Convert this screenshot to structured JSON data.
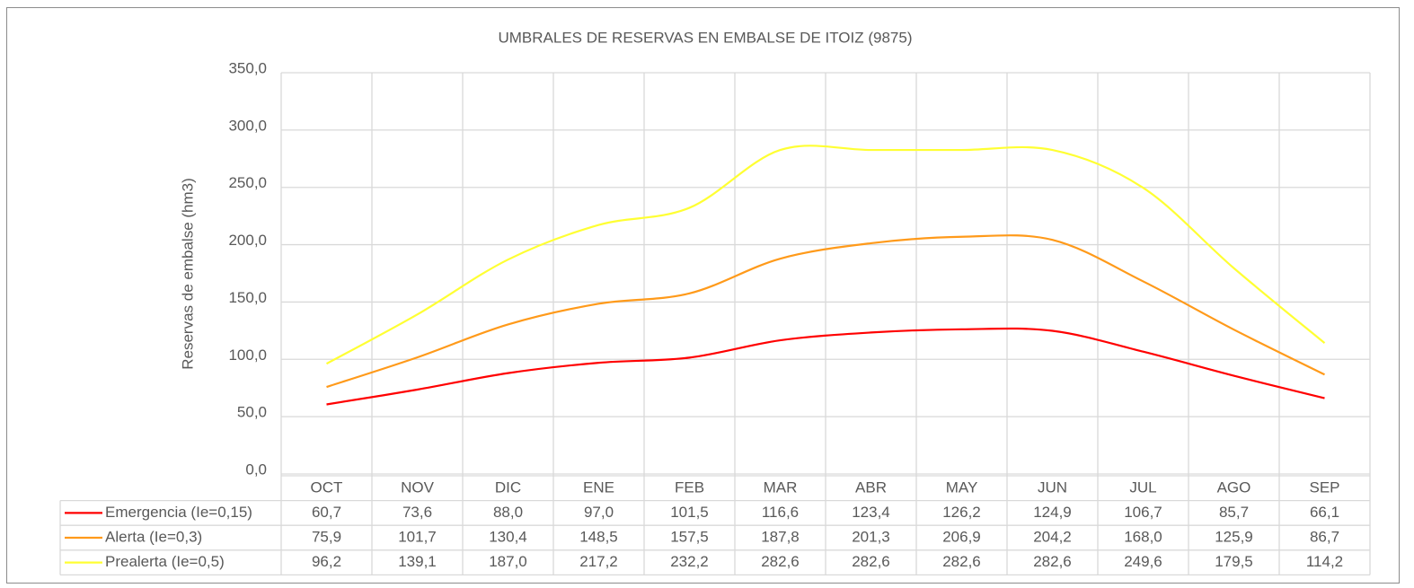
{
  "chart_data": {
    "type": "line",
    "title": "UMBRALES DE RESERVAS EN EMBALSE DE ITOIZ (9875)",
    "y_label": "Reservas de embalse (hm3)",
    "categories": [
      "OCT",
      "NOV",
      "DIC",
      "ENE",
      "FEB",
      "MAR",
      "ABR",
      "MAY",
      "JUN",
      "JUL",
      "AGO",
      "SEP"
    ],
    "series": [
      {
        "name": "Emergencia (Ie=0,15)",
        "color": "#ff0000",
        "values": [
          60.7,
          73.6,
          88.0,
          97.0,
          101.5,
          116.6,
          123.4,
          126.2,
          124.9,
          106.7,
          85.7,
          66.1
        ],
        "value_labels": [
          "60,7",
          "73,6",
          "88,0",
          "97,0",
          "101,5",
          "116,6",
          "123,4",
          "126,2",
          "124,9",
          "106,7",
          "85,7",
          "66,1"
        ]
      },
      {
        "name": "Alerta (Ie=0,3)",
        "color": "#ff9a1a",
        "values": [
          75.9,
          101.7,
          130.4,
          148.5,
          157.5,
          187.8,
          201.3,
          206.9,
          204.2,
          168.0,
          125.9,
          86.7
        ],
        "value_labels": [
          "75,9",
          "101,7",
          "130,4",
          "148,5",
          "157,5",
          "187,8",
          "201,3",
          "206,9",
          "204,2",
          "168,0",
          "125,9",
          "86,7"
        ]
      },
      {
        "name": "Prealerta (Ie=0,5)",
        "color": "#ffff33",
        "values": [
          96.2,
          139.1,
          187.0,
          217.2,
          232.2,
          282.6,
          282.6,
          282.6,
          282.6,
          249.6,
          179.5,
          114.2
        ],
        "value_labels": [
          "96,2",
          "139,1",
          "187,0",
          "217,2",
          "232,2",
          "282,6",
          "282,6",
          "282,6",
          "282,6",
          "249,6",
          "179,5",
          "114,2"
        ]
      }
    ],
    "ylim": [
      0,
      350
    ],
    "yticks": [
      {
        "value": 0,
        "label": "0,0"
      },
      {
        "value": 50,
        "label": "50,0"
      },
      {
        "value": 100,
        "label": "100,0"
      },
      {
        "value": 150,
        "label": "150,0"
      },
      {
        "value": 200,
        "label": "200,0"
      },
      {
        "value": 250,
        "label": "250,0"
      },
      {
        "value": 300,
        "label": "300,0"
      },
      {
        "value": 350,
        "label": "350,0"
      }
    ],
    "grid": true,
    "smooth": true
  }
}
